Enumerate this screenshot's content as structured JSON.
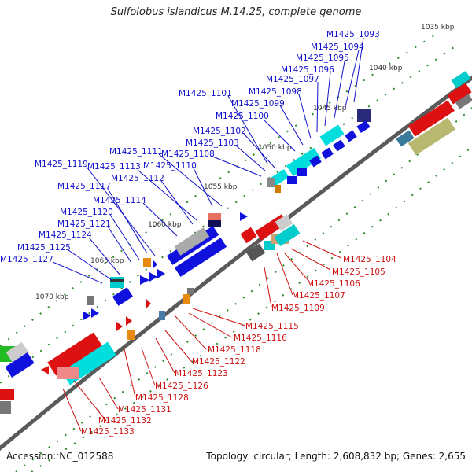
{
  "title": "Sulfolobus islandicus M.14.25, complete genome",
  "footer": {
    "accession": "Accession: NC_012588",
    "topology": "Topology: circular; Length: 2,608,832 bp; Genes: 2,655"
  },
  "ticks": [
    "1035 kbp",
    "1040 kbp",
    "1045 kbp",
    "1050 kbp",
    "1055 kbp",
    "1060 kbp",
    "1065 kbp",
    "1070 kbp"
  ],
  "genes_top": [
    "M1425_1093",
    "M1425_1094",
    "M1425_1095",
    "M1425_1096",
    "M1425_1097",
    "M1425_1098",
    "M1425_1099",
    "M1425_1100",
    "M1425_1101",
    "M1425_1102",
    "M1425_1103",
    "M1425_1108",
    "M1425_1111",
    "M1425_1110",
    "M1425_1113",
    "M1425_1112",
    "M1425_1119",
    "M1425_1117",
    "M1425_1114",
    "M1425_1120",
    "M1425_1121",
    "M1425_1124",
    "M1425_1125",
    "M1425_1127"
  ],
  "genes_bottom": [
    "M1425_1104",
    "M1425_1105",
    "M1425_1106",
    "M1425_1107",
    "M1425_1109",
    "M1425_1115",
    "M1425_1116",
    "M1425_1118",
    "M1425_1122",
    "M1425_1123",
    "M1425_1126",
    "M1425_1128",
    "M1425_1131",
    "M1425_1132",
    "M1425_1133"
  ],
  "colors": {
    "forward_label": "#1010cc",
    "reverse_label": "#cc1010",
    "backbone": "#666666",
    "tick": "#1a7a1a"
  }
}
